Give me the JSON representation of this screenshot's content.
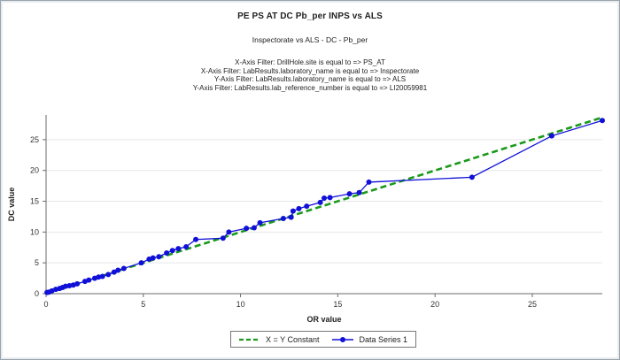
{
  "chart_data": {
    "type": "line",
    "title": "PE PS AT DC Pb_per INPS vs ALS",
    "subtitle": "Inspectorate vs ALS - DC - Pb_per",
    "filters": [
      "X-Axis Filter: DrillHole.site is equal to => PS_AT",
      "X-Axis Filter: LabResults.laboratory_name is equal to => Inspectorate",
      "Y-Axis Filter: LabResults.laboratory_name is equal to => ALS",
      "Y-Axis Filter: LabResults.lab_reference_number is equal to => LI20059981"
    ],
    "xlabel": "OR value",
    "ylabel": "DC value",
    "xlim": [
      0,
      28.6
    ],
    "ylim": [
      0,
      29
    ],
    "xticks": [
      0,
      5,
      10,
      15,
      20,
      25
    ],
    "yticks": [
      0,
      5,
      10,
      15,
      20,
      25
    ],
    "grid": "horizontal",
    "legend_position": "bottom",
    "series": [
      {
        "name": "X = Y Constant",
        "color": "#1a9a1a",
        "style": "dashed",
        "x": [
          0,
          28.6
        ],
        "y": [
          0,
          28.6
        ]
      },
      {
        "name": "Data Series 1",
        "color": "#1010d8",
        "style": "solid-markers",
        "x": [
          0.05,
          0.15,
          0.3,
          0.5,
          0.7,
          0.85,
          1.0,
          1.2,
          1.4,
          1.6,
          2.0,
          2.2,
          2.5,
          2.7,
          2.9,
          3.2,
          3.5,
          3.7,
          4.0,
          4.9,
          5.3,
          5.5,
          5.8,
          6.2,
          6.5,
          6.8,
          7.2,
          7.7,
          9.1,
          9.4,
          10.3,
          10.7,
          11.0,
          12.2,
          12.6,
          12.7,
          13.0,
          13.4,
          14.1,
          14.3,
          14.6,
          15.6,
          16.1,
          16.6,
          21.9,
          26.0,
          28.6
        ],
        "y": [
          0.2,
          0.25,
          0.45,
          0.7,
          0.85,
          1.0,
          1.2,
          1.3,
          1.4,
          1.6,
          2.0,
          2.2,
          2.5,
          2.7,
          2.8,
          3.1,
          3.5,
          3.8,
          4.1,
          5.0,
          5.6,
          5.8,
          6.0,
          6.6,
          7.0,
          7.3,
          7.6,
          8.8,
          9.0,
          10.0,
          10.6,
          10.7,
          11.5,
          12.2,
          12.4,
          13.4,
          13.8,
          14.2,
          14.8,
          15.5,
          15.6,
          16.2,
          16.4,
          18.1,
          18.9,
          25.6,
          28.1
        ]
      }
    ]
  }
}
